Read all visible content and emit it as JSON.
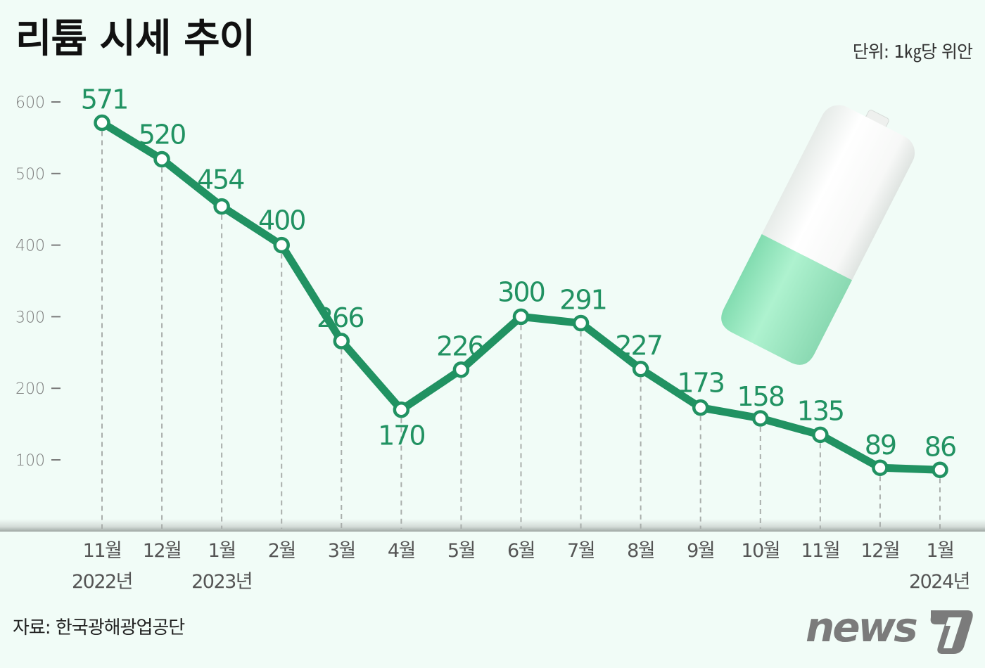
{
  "header": {
    "title": "리튬 시세 추이",
    "unit": "단위: 1㎏당 위안"
  },
  "footer": {
    "source": "자료: 한국광해광업공단",
    "logo_text": "news1"
  },
  "colors": {
    "background": "#f1fcf7",
    "line": "#219262",
    "value_label": "#219262",
    "axis_text": "#7a7a7a",
    "battery_fill": "#9fe8c4"
  },
  "illustration": "battery-icon",
  "chart_data": {
    "type": "line",
    "title": "리튬 시세 추이",
    "xlabel": "",
    "ylabel": "단위: 1㎏당 위안",
    "ylim": [
      0,
      600
    ],
    "yticks": [
      100,
      200,
      300,
      400,
      500,
      600
    ],
    "grid": false,
    "legend": null,
    "categories": [
      "11월",
      "12월",
      "1월",
      "2월",
      "3월",
      "4월",
      "5월",
      "6월",
      "7월",
      "8월",
      "9월",
      "10월",
      "11월",
      "12월",
      "1월"
    ],
    "year_labels": [
      {
        "index": 0,
        "label": "2022년"
      },
      {
        "index": 2,
        "label": "2023년"
      },
      {
        "index": 14,
        "label": "2024년"
      }
    ],
    "series": [
      {
        "name": "리튬 시세",
        "values": [
          571,
          520,
          454,
          400,
          266,
          170,
          226,
          300,
          291,
          227,
          173,
          158,
          135,
          89,
          86
        ]
      }
    ]
  }
}
